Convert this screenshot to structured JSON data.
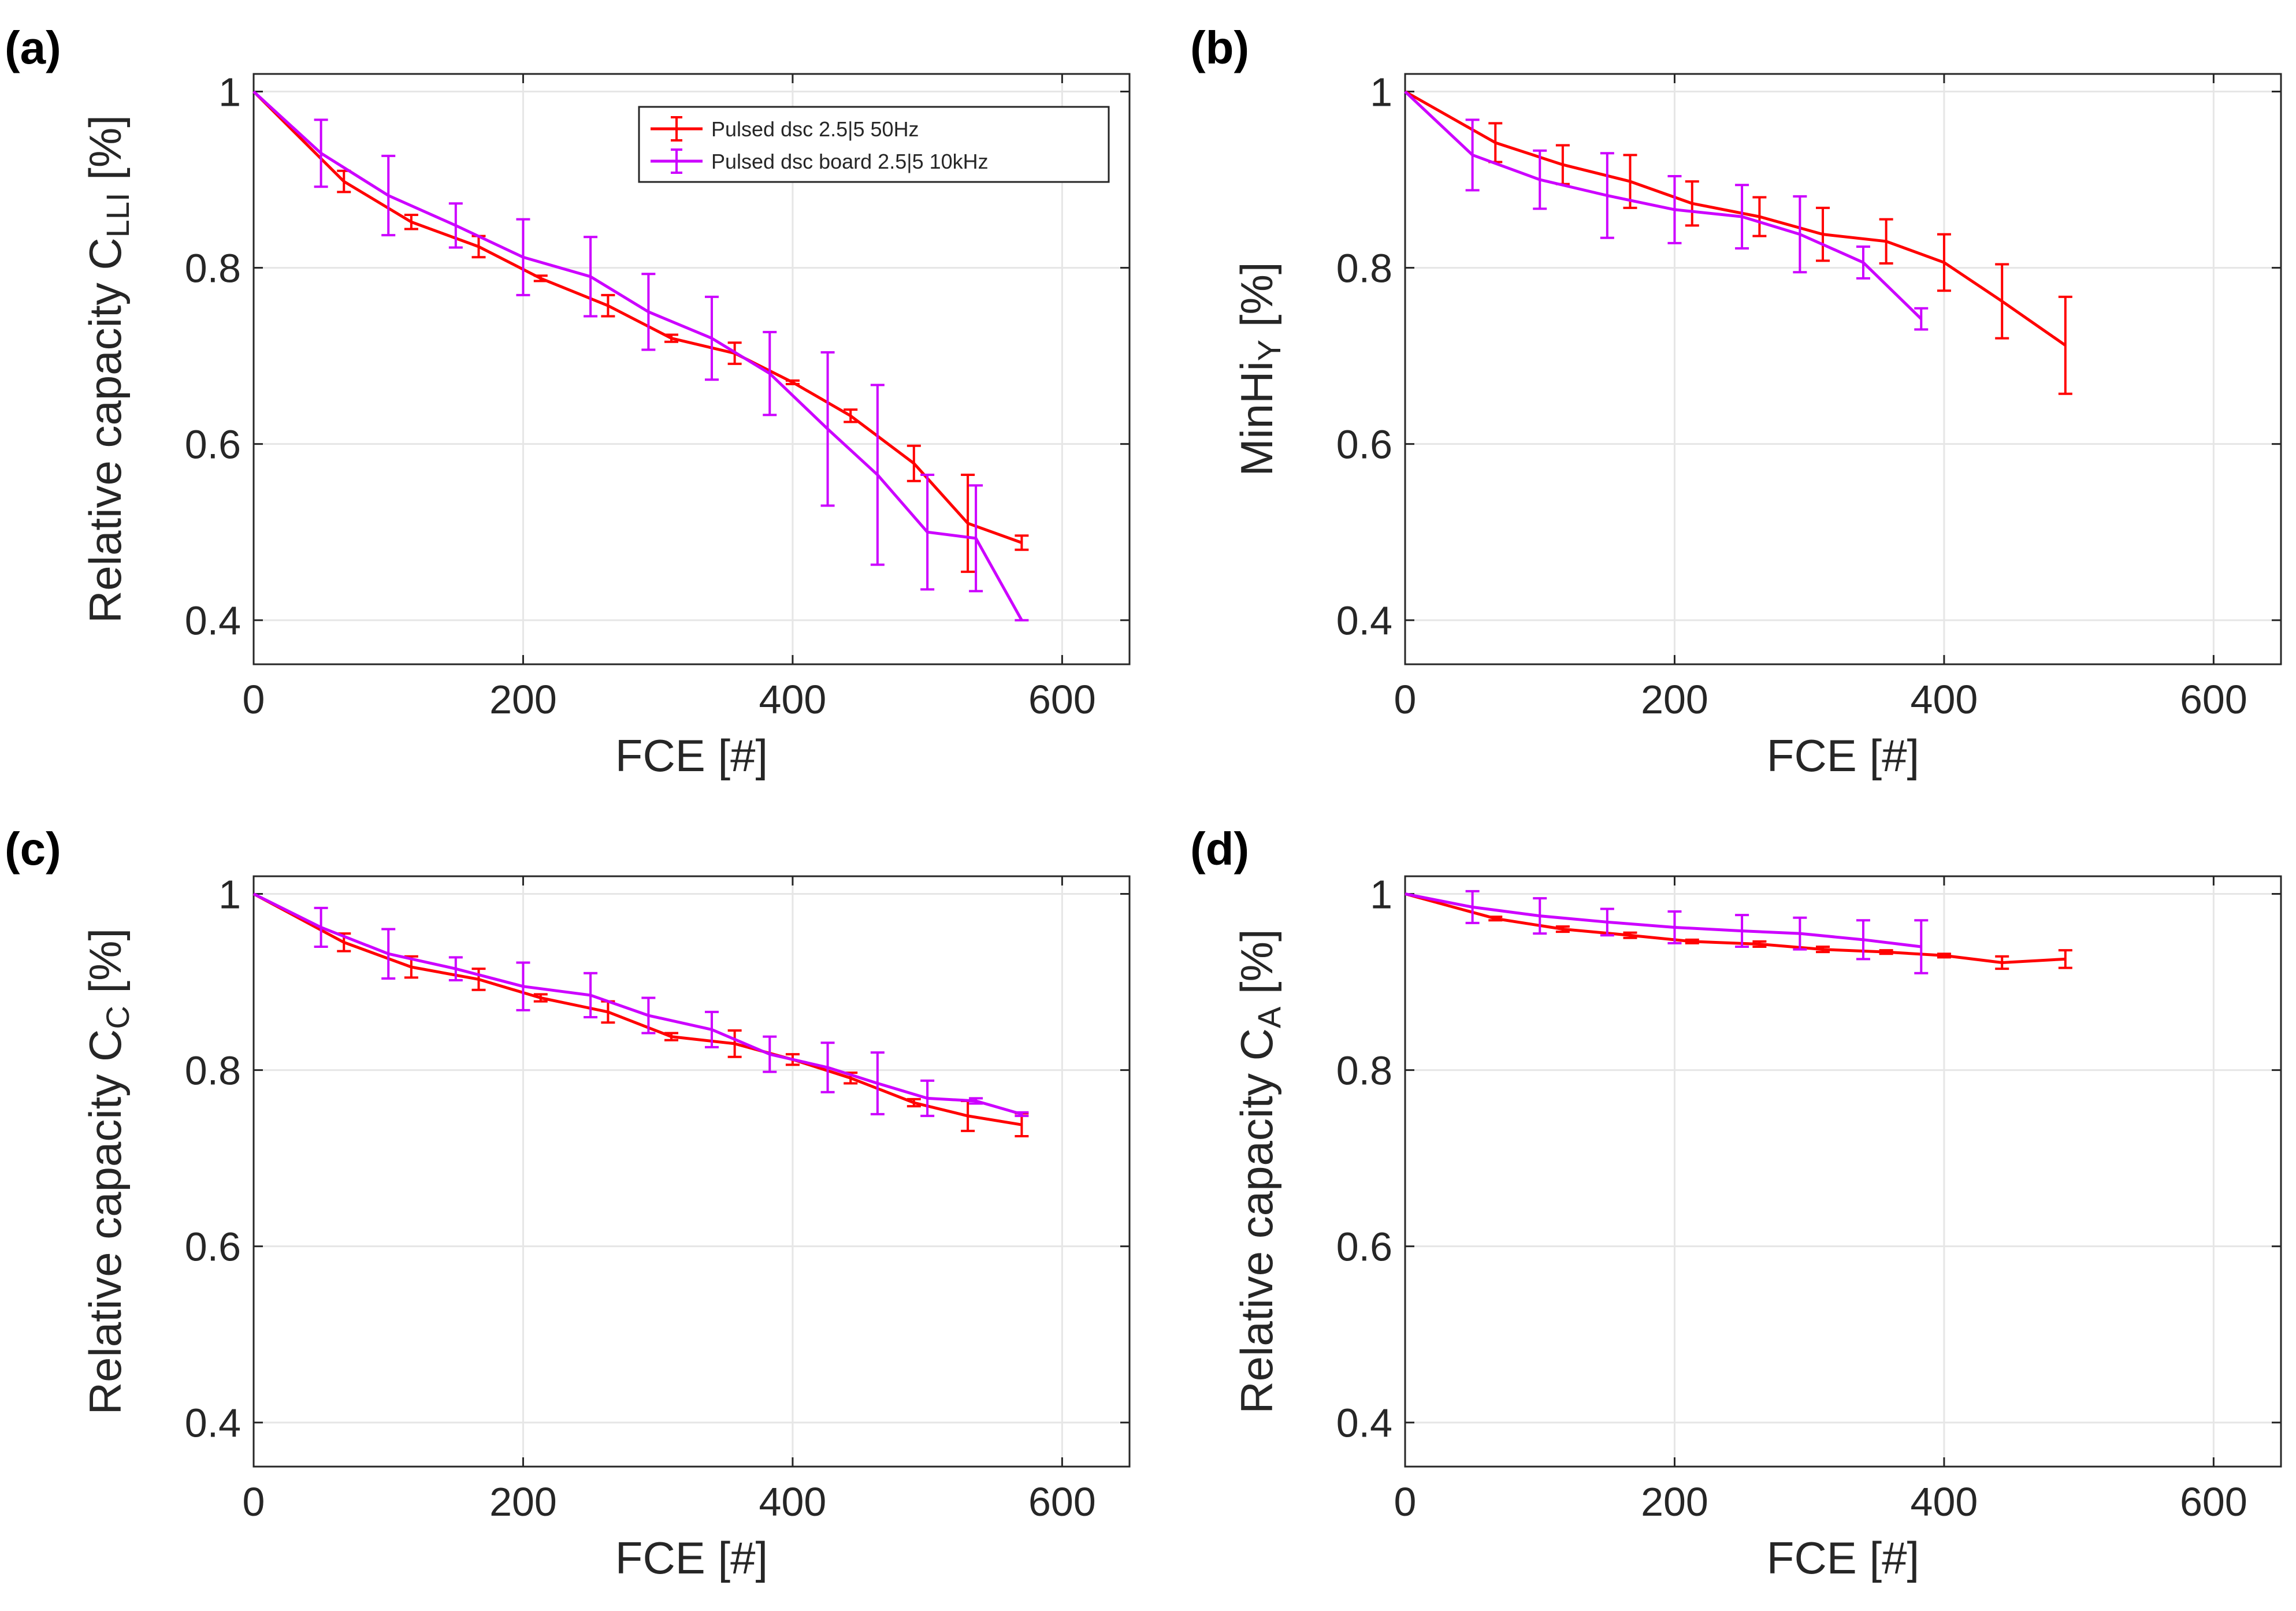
{
  "colors": {
    "red": "#ff0000",
    "magenta": "#cc00ff",
    "axis": "#262626",
    "grid": "#e6e6e6"
  },
  "legend": [
    {
      "name": "Pulsed dsc 2.5|5 50Hz",
      "color": "#ff0000"
    },
    {
      "name": "Pulsed dsc board 2.5|5 10kHz",
      "color": "#cc00ff"
    }
  ],
  "chart_data": [
    {
      "panel": "(a)",
      "type": "line",
      "xlabel": "FCE [#]",
      "ylabel_main": "Relative capacity C",
      "ylabel_sub": "LLI",
      "ylabel_unit": " [%]",
      "xlim": [
        0,
        650
      ],
      "ylim": [
        0.35,
        1.02
      ],
      "xticks": [
        0,
        200,
        400,
        600
      ],
      "yticks": [
        0.4,
        0.6,
        0.8,
        1
      ],
      "ytick_labels": [
        "0.4",
        "0.6",
        "0.8",
        "1"
      ],
      "xtick_labels": [
        "0",
        "200",
        "400",
        "600"
      ],
      "grid": true,
      "legend": "top-right",
      "series": [
        {
          "name": "Pulsed dsc 2.5|5 50Hz",
          "x": [
            0,
            67,
            117,
            167,
            213,
            263,
            310,
            357,
            400,
            443,
            490,
            530,
            570
          ],
          "y": [
            1.0,
            0.898,
            0.852,
            0.824,
            0.788,
            0.757,
            0.72,
            0.703,
            0.67,
            0.632,
            0.578,
            0.51,
            0.488
          ],
          "err": [
            0,
            0.012,
            0.008,
            0.012,
            0.003,
            0.012,
            0.004,
            0.012,
            0.002,
            0.007,
            0.02,
            0.055,
            0.008
          ]
        },
        {
          "name": "Pulsed dsc board 2.5|5 10kHz",
          "x": [
            0,
            50,
            100,
            150,
            200,
            250,
            293,
            340,
            383,
            426,
            463,
            500,
            536,
            570
          ],
          "y": [
            1.0,
            0.93,
            0.882,
            0.848,
            0.812,
            0.79,
            0.75,
            0.72,
            0.68,
            0.617,
            0.565,
            0.5,
            0.493,
            0.4
          ],
          "err": [
            0,
            0.038,
            0.045,
            0.025,
            0.043,
            0.045,
            0.043,
            0.047,
            0.047,
            0.087,
            0.102,
            0.065,
            0.06,
            0
          ]
        }
      ]
    },
    {
      "panel": "(b)",
      "type": "line",
      "xlabel": "FCE [#]",
      "ylabel_main": "MinHi",
      "ylabel_sub": "Y",
      "ylabel_unit": " [%]",
      "xlim": [
        0,
        650
      ],
      "ylim": [
        0.35,
        1.02
      ],
      "xticks": [
        0,
        200,
        400,
        600
      ],
      "yticks": [
        0.4,
        0.6,
        0.8,
        1
      ],
      "ytick_labels": [
        "0.4",
        "0.6",
        "0.8",
        "1"
      ],
      "xtick_labels": [
        "0",
        "200",
        "400",
        "600"
      ],
      "grid": true,
      "series": [
        {
          "name": "Pulsed dsc 2.5|5 50Hz",
          "x": [
            0,
            67,
            117,
            167,
            213,
            263,
            310,
            357,
            400,
            443,
            490
          ],
          "y": [
            1.0,
            0.942,
            0.917,
            0.898,
            0.873,
            0.858,
            0.838,
            0.83,
            0.806,
            0.762,
            0.712
          ],
          "err": [
            0,
            0.022,
            0.022,
            0.03,
            0.025,
            0.022,
            0.03,
            0.025,
            0.032,
            0.042,
            0.055
          ]
        },
        {
          "name": "Pulsed dsc board 2.5|5 10kHz",
          "x": [
            0,
            50,
            100,
            150,
            200,
            250,
            293,
            340,
            383
          ],
          "y": [
            1.0,
            0.928,
            0.9,
            0.882,
            0.866,
            0.858,
            0.838,
            0.806,
            0.742
          ],
          "err": [
            0,
            0.04,
            0.033,
            0.048,
            0.038,
            0.036,
            0.043,
            0.018,
            0.012
          ]
        }
      ]
    },
    {
      "panel": "(c)",
      "type": "line",
      "xlabel": "FCE [#]",
      "ylabel_main": "Relative capacity C",
      "ylabel_sub": "C",
      "ylabel_unit": " [%]",
      "xlim": [
        0,
        650
      ],
      "ylim": [
        0.35,
        1.02
      ],
      "xticks": [
        0,
        200,
        400,
        600
      ],
      "yticks": [
        0.4,
        0.6,
        0.8,
        1
      ],
      "ytick_labels": [
        "0.4",
        "0.6",
        "0.8",
        "1"
      ],
      "xtick_labels": [
        "0",
        "200",
        "400",
        "600"
      ],
      "grid": true,
      "series": [
        {
          "name": "Pulsed dsc 2.5|5 50Hz",
          "x": [
            0,
            67,
            117,
            167,
            213,
            263,
            310,
            357,
            400,
            443,
            490,
            530,
            570
          ],
          "y": [
            1.0,
            0.945,
            0.917,
            0.903,
            0.882,
            0.866,
            0.838,
            0.83,
            0.812,
            0.791,
            0.763,
            0.748,
            0.738
          ],
          "err": [
            0,
            0.01,
            0.012,
            0.012,
            0.004,
            0.012,
            0.004,
            0.015,
            0.006,
            0.006,
            0.004,
            0.017,
            0.013
          ]
        },
        {
          "name": "Pulsed dsc board 2.5|5 10kHz",
          "x": [
            0,
            50,
            100,
            150,
            200,
            250,
            293,
            340,
            383,
            426,
            463,
            500,
            536,
            570
          ],
          "y": [
            1.0,
            0.962,
            0.932,
            0.915,
            0.895,
            0.885,
            0.862,
            0.846,
            0.818,
            0.803,
            0.785,
            0.768,
            0.765,
            0.75
          ],
          "err": [
            0,
            0.022,
            0.028,
            0.013,
            0.027,
            0.025,
            0.02,
            0.02,
            0.02,
            0.028,
            0.035,
            0.02,
            0.003,
            0.002
          ]
        }
      ]
    },
    {
      "panel": "(d)",
      "type": "line",
      "xlabel": "FCE [#]",
      "ylabel_main": "Relative capacity C",
      "ylabel_sub": "A",
      "ylabel_unit": " [%]",
      "xlim": [
        0,
        650
      ],
      "ylim": [
        0.35,
        1.02
      ],
      "xticks": [
        0,
        200,
        400,
        600
      ],
      "yticks": [
        0.4,
        0.6,
        0.8,
        1
      ],
      "ytick_labels": [
        "0.4",
        "0.6",
        "0.8",
        "1"
      ],
      "xtick_labels": [
        "0",
        "200",
        "400",
        "600"
      ],
      "grid": true,
      "series": [
        {
          "name": "Pulsed dsc 2.5|5 50Hz",
          "x": [
            0,
            67,
            117,
            167,
            213,
            263,
            310,
            357,
            400,
            443,
            490
          ],
          "y": [
            1.0,
            0.972,
            0.96,
            0.953,
            0.946,
            0.943,
            0.937,
            0.934,
            0.93,
            0.922,
            0.926
          ],
          "err": [
            0,
            0.002,
            0.003,
            0.003,
            0.002,
            0.003,
            0.003,
            0.002,
            0.002,
            0.007,
            0.01
          ]
        },
        {
          "name": "Pulsed dsc board 2.5|5 10kHz",
          "x": [
            0,
            50,
            100,
            150,
            200,
            250,
            293,
            340,
            383
          ],
          "y": [
            1.0,
            0.985,
            0.975,
            0.968,
            0.962,
            0.958,
            0.955,
            0.948,
            0.94
          ],
          "err": [
            0,
            0.018,
            0.02,
            0.015,
            0.018,
            0.018,
            0.018,
            0.022,
            0.03
          ]
        }
      ]
    }
  ]
}
